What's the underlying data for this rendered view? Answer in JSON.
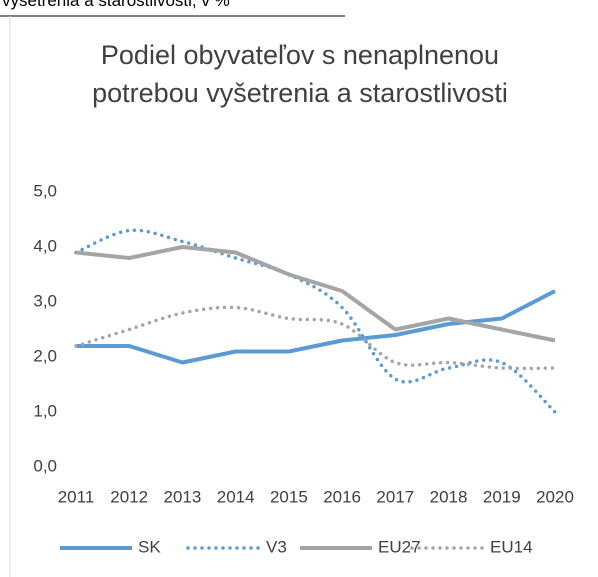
{
  "caption": "vyšetrenia a starostlivosti, v %",
  "chart_data": {
    "type": "line",
    "title": "Podiel obyvateľov s nenaplnenou potrebou vyšetrenia a starostlivosti",
    "categories": [
      "2011",
      "2012",
      "2013",
      "2014",
      "2015",
      "2016",
      "2017",
      "2018",
      "2019",
      "2020"
    ],
    "series": [
      {
        "name": "SK",
        "color": "#5b9bd5",
        "style": "solid",
        "values": [
          2.2,
          2.2,
          1.9,
          2.1,
          2.1,
          2.3,
          2.4,
          2.6,
          2.7,
          3.2
        ]
      },
      {
        "name": "V3",
        "color": "#5b9bd5",
        "style": "dotted",
        "values": [
          3.9,
          4.3,
          4.1,
          3.8,
          3.5,
          2.9,
          1.6,
          1.8,
          1.9,
          1.0
        ]
      },
      {
        "name": "EU27",
        "color": "#a5a5a5",
        "style": "solid",
        "values": [
          3.9,
          3.8,
          4.0,
          3.9,
          3.5,
          3.2,
          2.5,
          2.7,
          2.5,
          2.3
        ]
      },
      {
        "name": "EU14",
        "color": "#a5a5a5",
        "style": "dotted",
        "values": [
          2.2,
          2.5,
          2.8,
          2.9,
          2.7,
          2.6,
          1.9,
          1.9,
          1.8,
          1.8
        ]
      }
    ],
    "ylim": [
      0,
      5
    ],
    "yticks": [
      {
        "value": 0,
        "label": "0,0"
      },
      {
        "value": 1,
        "label": "1,0"
      },
      {
        "value": 2,
        "label": "2,0"
      },
      {
        "value": 3,
        "label": "3,0"
      },
      {
        "value": 4,
        "label": "4,0"
      },
      {
        "value": 5,
        "label": "5,0"
      }
    ],
    "grid": false,
    "legend": "bottom"
  }
}
